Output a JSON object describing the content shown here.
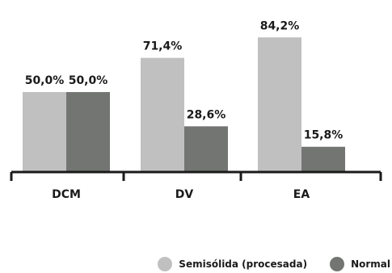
{
  "chart_data": {
    "type": "bar",
    "title": "",
    "xlabel": "",
    "ylabel": "",
    "categories": [
      "DCM",
      "DV",
      "EA"
    ],
    "series": [
      {
        "name": "Semisólida (procesada)",
        "values": [
          50.0,
          71.4,
          84.2
        ],
        "labels": [
          "50,0%",
          "71,4%",
          "84,2%"
        ],
        "color": "#c0c0c0"
      },
      {
        "name": "Normal",
        "values": [
          50.0,
          28.6,
          15.8
        ],
        "labels": [
          "50,0%",
          "28,6%",
          "15,8%"
        ],
        "color": "#737573"
      }
    ],
    "ylim": [
      0,
      100
    ],
    "grid": false,
    "legend_position": "bottom-right"
  }
}
